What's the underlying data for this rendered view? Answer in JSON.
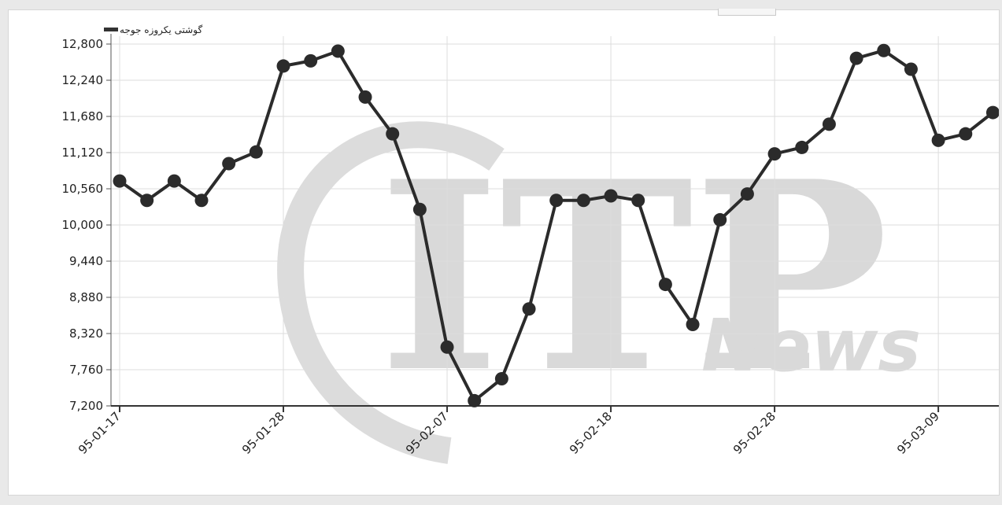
{
  "chart_data": {
    "type": "line",
    "legend": {
      "label": "گوشتی یکروزه جوجه",
      "placement": "top-left"
    },
    "watermark": {
      "letters": "ITP",
      "word": "News",
      "color": "#d9d9d9"
    },
    "x_tick_labels": [
      "95-01-17",
      "95-01-28",
      "95-02-07",
      "95-02-18",
      "95-02-28",
      "95-03-09"
    ],
    "x_tick_indices": [
      0,
      6,
      12,
      18,
      24,
      30
    ],
    "ylim": [
      7200,
      12800
    ],
    "y_ticks": [
      "7,200",
      "7,760",
      "8,320",
      "8,880",
      "9,440",
      "10,000",
      "10,560",
      "11,120",
      "11,680",
      "12,240",
      "12,800"
    ],
    "grid": true,
    "series": [
      {
        "color": "#2b2b2b",
        "values": [
          10680,
          10380,
          10680,
          10380,
          10950,
          11130,
          12460,
          12540,
          12690,
          11980,
          11410,
          10240,
          8110,
          7280,
          7620,
          8700,
          10380,
          10380,
          10450,
          10380,
          9080,
          8460,
          10080,
          10480,
          11100,
          11200,
          11560,
          12580,
          12700,
          12410,
          11310,
          11410,
          11740
        ]
      }
    ]
  }
}
